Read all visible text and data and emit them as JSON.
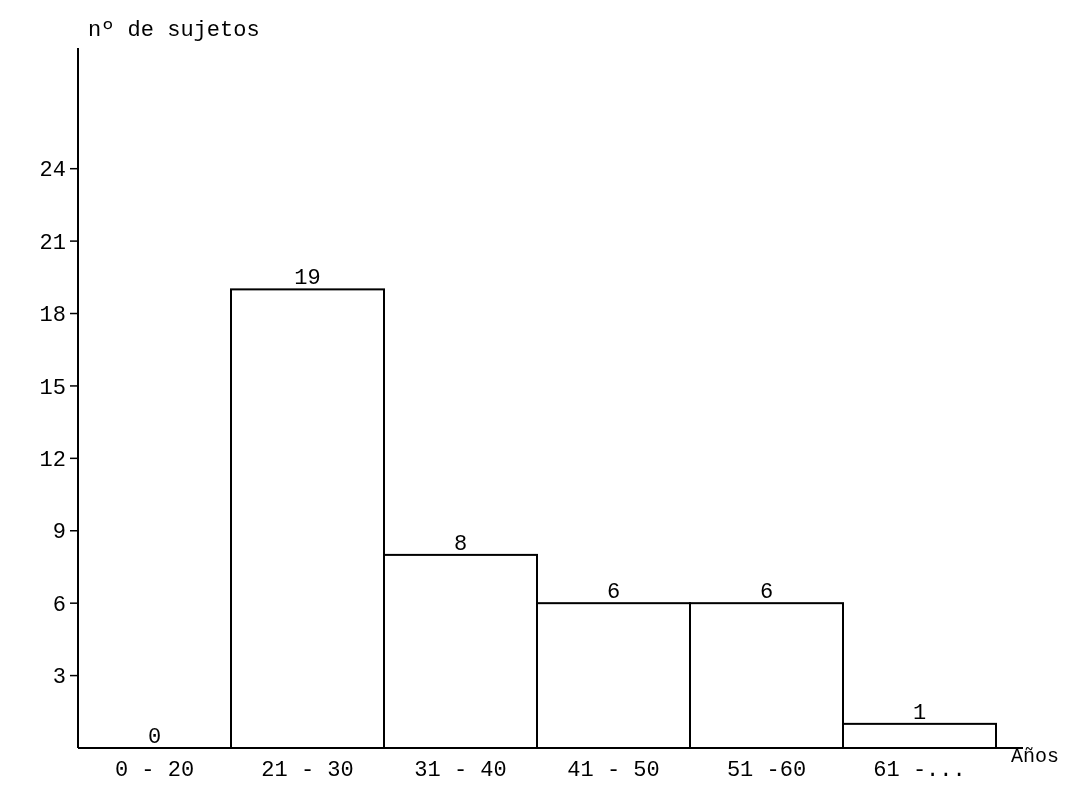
{
  "chart_data": {
    "type": "bar",
    "ylabel": "nº de sujetos",
    "xlabel": "Años",
    "categories": [
      "0 - 20",
      "21 - 30",
      "31 - 40",
      "41 - 50",
      "51 -60",
      "61 -..."
    ],
    "values": [
      0,
      19,
      8,
      6,
      6,
      1
    ],
    "color": "#ffffff",
    "ylim": [
      0,
      29
    ],
    "yticks": [
      3,
      6,
      9,
      12,
      15,
      18,
      21,
      24
    ],
    "data_labels": true
  }
}
